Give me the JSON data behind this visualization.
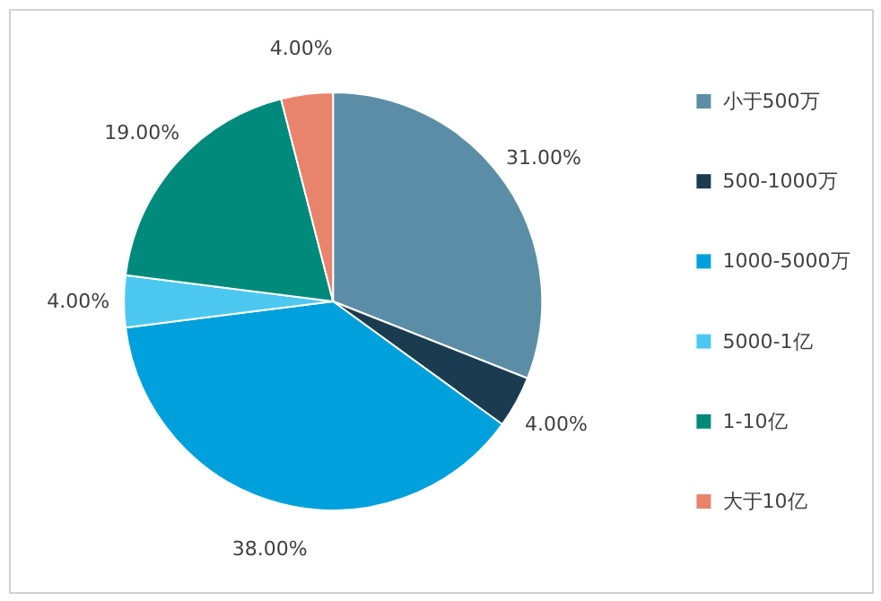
{
  "chart_data": {
    "type": "pie",
    "categories": [
      "小于500万",
      "500-1000万",
      "1000-5000万",
      "5000-1亿",
      "1-10亿",
      "大于10亿"
    ],
    "values": [
      31,
      4,
      38,
      4,
      19,
      4
    ],
    "colors": [
      "#5b8ea6",
      "#1b3b50",
      "#00a0dc",
      "#4cc8f0",
      "#008a7b",
      "#e8846c"
    ],
    "value_labels": [
      "31.00%",
      "4.00%",
      "38.00%",
      "4.00%",
      "19.00%",
      "4.00%"
    ],
    "legend": "right"
  }
}
